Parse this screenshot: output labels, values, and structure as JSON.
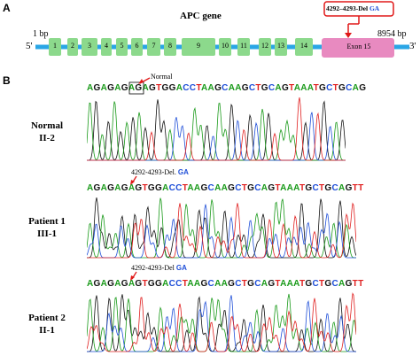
{
  "colors": {
    "gene_line": "#2aa6e6",
    "exon_fill": "#8cd98c",
    "exon15_fill": "#e88ac0",
    "mutation_box": "#e01818",
    "A": "#1a9a1a",
    "C": "#1f4fd8",
    "G": "#111111",
    "T": "#e02020"
  },
  "panel_a": {
    "letter": "A",
    "title": "APC gene",
    "start_label": "1 bp",
    "end_label": "8954 bp",
    "five_prime": "5'",
    "three_prime": "3'",
    "mutation_label_prefix": "4292–4293-Del",
    "mutation_label_bases": "GA",
    "exons": [
      "1",
      "2",
      "3",
      "4",
      "5",
      "6",
      "7",
      "8",
      "9",
      "10",
      "11",
      "12",
      "13",
      "14"
    ],
    "exon15": "Exon 15"
  },
  "panel_b": {
    "letter": "B",
    "rows": [
      {
        "label_line1": "Normal",
        "label_line2": "II-2",
        "sequence": "AGAGAGAGAGTGGACCTAAGCAAGCTGCAGTAAATGCTGCAG",
        "annotation": "Normal",
        "annotation_bases": ""
      },
      {
        "label_line1": "Patient 1",
        "label_line2": "III-1",
        "sequence": "AGAGAGAGTGGACCTAAGCAAGCTGCAGTAAATGCTGCAGTT",
        "annotation": "4292-4293-Del.",
        "annotation_bases": "GA"
      },
      {
        "label_line1": "Patient 2",
        "label_line2": "II-1",
        "sequence": "AGAGAGAGTGGACCTAAGCAAGCTGCAGTAAATGCTGCAGTT",
        "annotation": "4292-4293-Del",
        "annotation_bases": "GA"
      }
    ]
  }
}
